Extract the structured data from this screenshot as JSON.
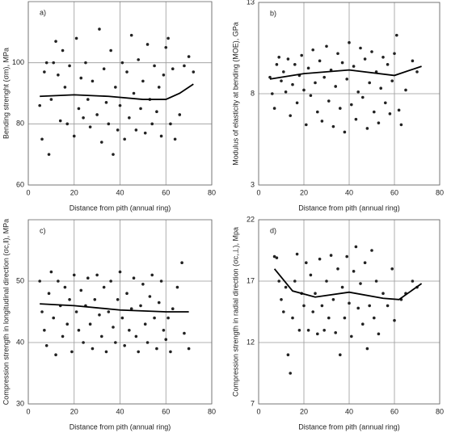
{
  "chart_data": [
    {
      "type": "scatter",
      "panel_label": "a)",
      "xlabel": "Distance from pith (annual ring)",
      "ylabel": "Bending strenght (σm), MPa",
      "xlim": [
        0,
        80
      ],
      "xticks": [
        0,
        20,
        40,
        60,
        80
      ],
      "ylim": [
        60,
        120
      ],
      "yticks": [
        60,
        80,
        100
      ],
      "grid": true,
      "series": [
        {
          "mode": "markers",
          "color": "#222222",
          "x": [
            5,
            6,
            7,
            8,
            9,
            10,
            11,
            12,
            13,
            14,
            15,
            16,
            17,
            18,
            20,
            21,
            22,
            23,
            24,
            25,
            26,
            27,
            28,
            30,
            31,
            32,
            33,
            34,
            35,
            36,
            37,
            38,
            39,
            40,
            41,
            42,
            43,
            44,
            45,
            46,
            47,
            48,
            49,
            50,
            51,
            52,
            53,
            54,
            55,
            56,
            57,
            58,
            59,
            60,
            61,
            62,
            63,
            64,
            66,
            68,
            70,
            72
          ],
          "values": [
            86,
            75,
            97,
            100,
            70,
            88,
            100,
            107,
            96,
            81,
            104,
            92,
            80,
            99,
            76,
            108,
            85,
            95,
            82,
            100,
            88,
            79,
            94,
            83,
            111,
            74,
            98,
            87,
            80,
            104,
            70,
            92,
            78,
            86,
            100,
            75,
            97,
            82,
            109,
            90,
            78,
            101,
            85,
            94,
            77,
            106,
            88,
            80,
            99,
            84,
            92,
            76,
            96,
            105,
            108,
            80,
            98,
            75,
            83,
            99,
            102,
            97
          ]
        },
        {
          "mode": "line",
          "color": "#000000",
          "x": [
            5,
            20,
            35,
            50,
            60,
            66,
            72
          ],
          "values": [
            89,
            89.5,
            89,
            88,
            88,
            90,
            93
          ]
        }
      ]
    },
    {
      "type": "scatter",
      "panel_label": "b)",
      "xlabel": "Distance from pith (annual ring)",
      "ylabel": "Modulus of elasticity at bending (MOE), GPa",
      "xlim": [
        0,
        80
      ],
      "xticks": [
        0,
        20,
        40,
        60,
        80
      ],
      "ylim": [
        3,
        13
      ],
      "yticks": [
        3,
        8,
        13
      ],
      "grid": true,
      "series": [
        {
          "mode": "markers",
          "color": "#222222",
          "x": [
            5,
            6,
            7,
            8,
            9,
            10,
            11,
            12,
            13,
            14,
            15,
            16,
            17,
            18,
            19,
            20,
            21,
            22,
            23,
            24,
            25,
            26,
            27,
            28,
            29,
            30,
            31,
            32,
            33,
            34,
            35,
            36,
            37,
            38,
            39,
            40,
            41,
            42,
            43,
            44,
            45,
            46,
            47,
            48,
            49,
            50,
            51,
            52,
            53,
            54,
            55,
            56,
            57,
            58,
            59,
            60,
            61,
            62,
            63,
            65,
            68,
            70
          ],
          "values": [
            8.9,
            8,
            7.2,
            9.6,
            10,
            8.7,
            9.2,
            8.1,
            9.9,
            6.8,
            8.5,
            9.6,
            7.5,
            9,
            10.1,
            8.2,
            6.3,
            9.4,
            7.9,
            10.4,
            8.6,
            7,
            9.8,
            6.5,
            8.9,
            10.6,
            7.6,
            9.3,
            6.2,
            8.4,
            10.2,
            7.2,
            9.7,
            5.9,
            8.8,
            10.8,
            7.4,
            9.5,
            6.6,
            8.1,
            10.5,
            7.8,
            9.9,
            6.1,
            8.6,
            10.3,
            7,
            9.2,
            6.4,
            8.3,
            10,
            7.5,
            9.6,
            6.9,
            8.7,
            10.2,
            11.2,
            7.1,
            6.3,
            8.2,
            9.8,
            9.2
          ]
        },
        {
          "mode": "line",
          "color": "#000000",
          "x": [
            5,
            20,
            40,
            60,
            72
          ],
          "values": [
            8.8,
            9.1,
            9.3,
            9,
            9.5
          ]
        }
      ]
    },
    {
      "type": "scatter",
      "panel_label": "c)",
      "xlabel": "Distance from pith (annual ring)",
      "ylabel": "Compression strength in longitudinal direction (σc,ǁ), MPa",
      "xlim": [
        0,
        80
      ],
      "xticks": [
        0,
        20,
        40,
        60,
        80
      ],
      "ylim": [
        30,
        60
      ],
      "yticks": [
        30,
        40,
        50
      ],
      "grid": true,
      "series": [
        {
          "mode": "markers",
          "color": "#222222",
          "x": [
            5,
            6,
            7,
            8,
            9,
            10,
            11,
            12,
            13,
            14,
            15,
            16,
            17,
            18,
            19,
            20,
            21,
            22,
            23,
            24,
            25,
            26,
            27,
            28,
            29,
            30,
            31,
            32,
            33,
            34,
            35,
            36,
            37,
            38,
            39,
            40,
            41,
            42,
            43,
            44,
            45,
            46,
            47,
            48,
            49,
            50,
            51,
            52,
            53,
            54,
            55,
            56,
            57,
            58,
            59,
            60,
            61,
            62,
            63,
            65,
            67,
            68,
            70
          ],
          "values": [
            50,
            45,
            42,
            39.5,
            48,
            51.5,
            44,
            38,
            50,
            46,
            41,
            49,
            43,
            47,
            38.5,
            51,
            45,
            42,
            48.5,
            40,
            46,
            50.5,
            43,
            39,
            47,
            51,
            44.5,
            41,
            49,
            38.5,
            45,
            50,
            42.5,
            40,
            47,
            51.5,
            44,
            39.5,
            48,
            42,
            45.5,
            50.5,
            41,
            38.5,
            46,
            49.5,
            43,
            40,
            47.5,
            51,
            44,
            39,
            46.5,
            50,
            42,
            40.5,
            44,
            38.5,
            45.5,
            49,
            53,
            41.5,
            39
          ]
        },
        {
          "mode": "line",
          "color": "#000000",
          "x": [
            5,
            20,
            40,
            60,
            70
          ],
          "values": [
            46.3,
            46,
            45.3,
            45,
            45
          ]
        }
      ]
    },
    {
      "type": "scatter",
      "panel_label": "d)",
      "xlabel": "Distance from pith (annual ring)",
      "ylabel": "Compression strength in radial direction (σc,⊥), Mpa",
      "xlim": [
        0,
        80
      ],
      "xticks": [
        0,
        20,
        40,
        60,
        80
      ],
      "ylim": [
        7,
        22
      ],
      "yticks": [
        7,
        12,
        17,
        22
      ],
      "grid": true,
      "series": [
        {
          "mode": "markers",
          "color": "#222222",
          "x": [
            7,
            8,
            9,
            10,
            11,
            12,
            13,
            14,
            15,
            16,
            17,
            18,
            19,
            20,
            21,
            22,
            23,
            24,
            25,
            26,
            27,
            28,
            29,
            30,
            31,
            32,
            33,
            34,
            35,
            36,
            37,
            38,
            39,
            40,
            41,
            42,
            43,
            44,
            45,
            46,
            47,
            48,
            49,
            50,
            51,
            52,
            53,
            55,
            57,
            59,
            60,
            63,
            65,
            68,
            70
          ],
          "values": [
            19,
            18.9,
            17,
            15.5,
            14.5,
            16.5,
            11,
            9.5,
            14,
            17,
            19.2,
            13,
            16,
            15,
            18.5,
            13,
            17.5,
            14.5,
            16,
            12.7,
            18.8,
            15,
            13,
            17,
            14,
            19.1,
            15.5,
            12.8,
            18,
            11,
            16.5,
            14,
            19,
            15.2,
            12.5,
            17.8,
            19.8,
            14.8,
            16.8,
            13.5,
            18.5,
            11.5,
            15,
            19.5,
            14,
            17,
            12.7,
            16,
            15,
            18,
            13.8,
            15.5,
            16,
            17,
            16.5
          ]
        },
        {
          "mode": "line",
          "color": "#000000",
          "x": [
            7,
            15,
            25,
            40,
            55,
            62,
            72
          ],
          "values": [
            18,
            16.2,
            15.7,
            16.1,
            15.6,
            15.5,
            16.8
          ]
        }
      ]
    }
  ]
}
